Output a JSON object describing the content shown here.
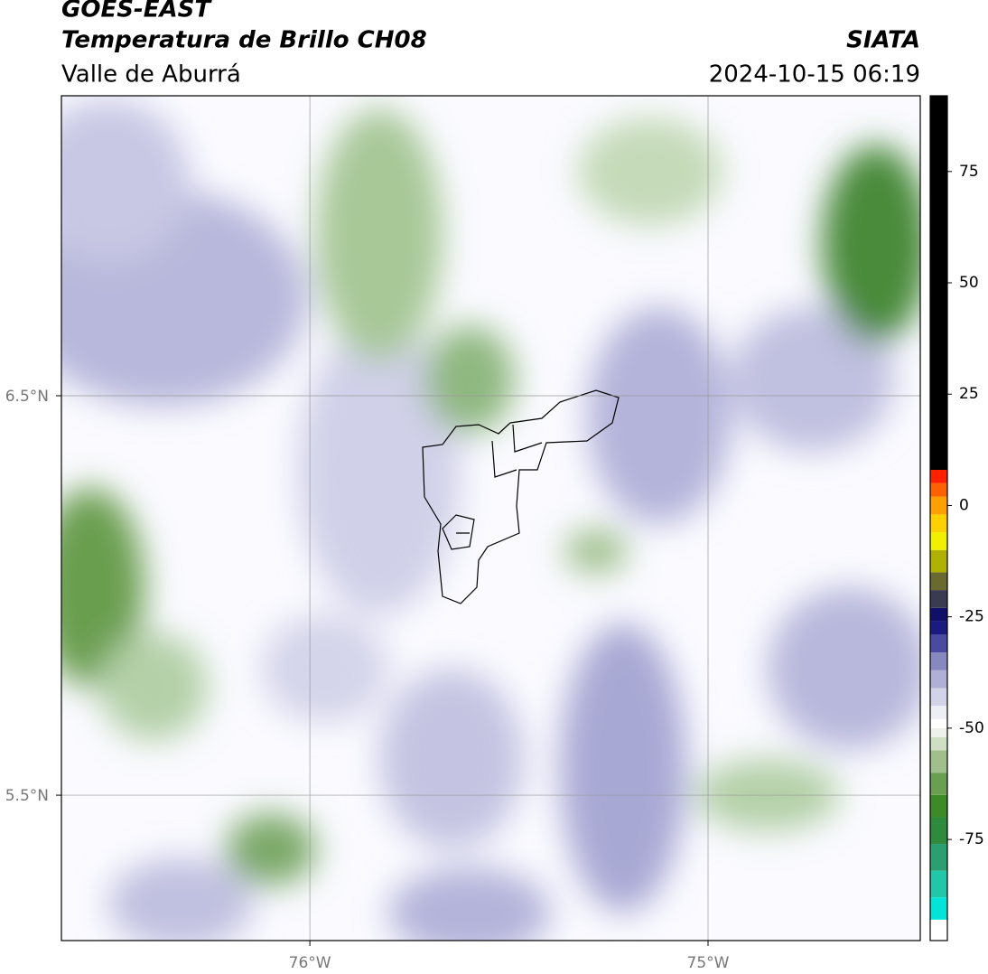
{
  "chart_data": {
    "type": "map",
    "title": "GOES-EAST",
    "subtitle": "Temperatura de Brillo CH08",
    "region": "Valle de Aburrá",
    "source": "SIATA",
    "timestamp": "2024-10-15 06:19",
    "xlim": [
      -76.624,
      -74.467
    ],
    "ylim": [
      5.136,
      7.251
    ],
    "xticks": [
      {
        "value": -76,
        "label": "76°W"
      },
      {
        "value": -75,
        "label": "75°W"
      }
    ],
    "yticks": [
      {
        "value": 6.5,
        "label": "6.5°N"
      },
      {
        "value": 5.5,
        "label": "5.5°N"
      }
    ],
    "grid": true,
    "colorbar": {
      "lim": [
        -97.7,
        92
      ],
      "ticks": [
        75,
        50,
        25,
        0,
        -25,
        -50,
        -75
      ],
      "stops": [
        {
          "value": -97.7,
          "color": "#ffffff"
        },
        {
          "value": -93,
          "color": "#00e5d8"
        },
        {
          "value": -88,
          "color": "#20c8a8"
        },
        {
          "value": -82,
          "color": "#2aa070"
        },
        {
          "value": -76,
          "color": "#2f8a3c"
        },
        {
          "value": -70,
          "color": "#3c8a28"
        },
        {
          "value": -65,
          "color": "#6a9e50"
        },
        {
          "value": -60,
          "color": "#9fbf8c"
        },
        {
          "value": -55,
          "color": "#cfdfc4"
        },
        {
          "value": -52,
          "color": "#eef3ea"
        },
        {
          "value": -50,
          "color": "#ffffff"
        },
        {
          "value": -48,
          "color": "#eeeef6"
        },
        {
          "value": -45,
          "color": "#d2d2e8"
        },
        {
          "value": -41,
          "color": "#b0b0d6"
        },
        {
          "value": -37,
          "color": "#8888c0"
        },
        {
          "value": -33,
          "color": "#4a4aa0"
        },
        {
          "value": -29,
          "color": "#1a1a80"
        },
        {
          "value": -26,
          "color": "#10106a"
        },
        {
          "value": -23,
          "color": "#3a3a50"
        },
        {
          "value": -19,
          "color": "#6a6a30"
        },
        {
          "value": -15,
          "color": "#b0b000"
        },
        {
          "value": -10,
          "color": "#f0f000"
        },
        {
          "value": -6,
          "color": "#ffd000"
        },
        {
          "value": -2,
          "color": "#ffa000"
        },
        {
          "value": 2,
          "color": "#ff6000"
        },
        {
          "value": 5,
          "color": "#ff2000"
        },
        {
          "value": 8,
          "color": "#000000"
        }
      ]
    }
  }
}
